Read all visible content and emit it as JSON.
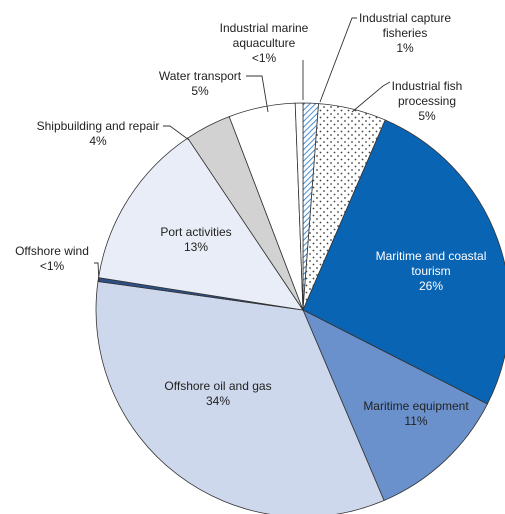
{
  "chart_data": {
    "type": "pie",
    "title": "",
    "slices": [
      {
        "label": "Industrial capture fisheries",
        "value_text": "1%",
        "value": 1.2,
        "color": "#ffffff",
        "pattern": "hatch"
      },
      {
        "label": "Industrial fish processing",
        "value_text": "5%",
        "value": 5.3,
        "color": "#ffffff",
        "pattern": "dots"
      },
      {
        "label": "Maritime and coastal tourism",
        "value_text": "26%",
        "value": 26.0,
        "color": "#0a64b4",
        "pattern": "none"
      },
      {
        "label": "Maritime equipment",
        "value_text": "11%",
        "value": 11.1,
        "color": "#6a91cc",
        "pattern": "none"
      },
      {
        "label": "Offshore oil and gas",
        "value_text": "34%",
        "value": 33.6,
        "color": "#cdd8ec",
        "pattern": "none"
      },
      {
        "label": "Offshore wind",
        "value_text": "<1%",
        "value": 0.3,
        "color": "#2c4f86",
        "pattern": "none"
      },
      {
        "label": "Port activities",
        "value_text": "13%",
        "value": 13.1,
        "color": "#e8edf7",
        "pattern": "none"
      },
      {
        "label": "Shipbuilding and repair",
        "value_text": "4%",
        "value": 3.6,
        "color": "#d2d2d2",
        "pattern": "none"
      },
      {
        "label": "Water transport",
        "value_text": "5%",
        "value": 5.2,
        "color": "#ffffff",
        "pattern": "none"
      },
      {
        "label": "Industrial marine aquaculture",
        "value_text": "<1%",
        "value": 0.6,
        "color": "#ffffff",
        "pattern": "none"
      }
    ],
    "start_angle_deg": 0,
    "direction": "clockwise",
    "outline_color": "#333333"
  }
}
